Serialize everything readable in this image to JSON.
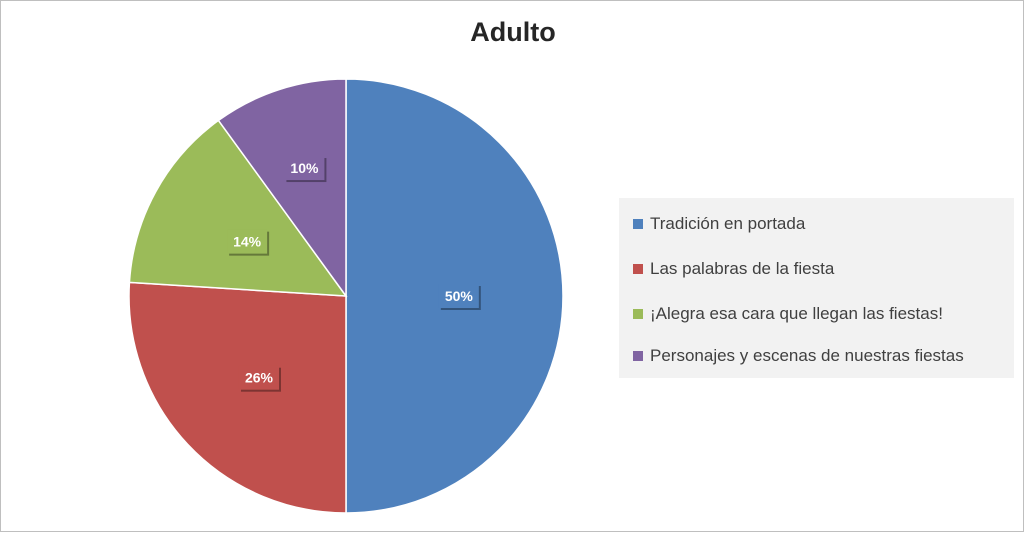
{
  "chart_data": {
    "type": "pie",
    "title": "Adulto",
    "categories": [
      "Tradición en portada",
      "Las palabras de la fiesta",
      "¡Alegra esa cara que llegan las fiestas!",
      "Personajes y escenas de nuestras fiestas"
    ],
    "values": [
      50,
      26,
      14,
      10
    ],
    "value_labels": [
      "50%",
      "26%",
      "14%",
      "10%"
    ],
    "colors": [
      "#4f81bd",
      "#c0504d",
      "#9bbb59",
      "#8064a2"
    ],
    "legend_position": "right"
  }
}
